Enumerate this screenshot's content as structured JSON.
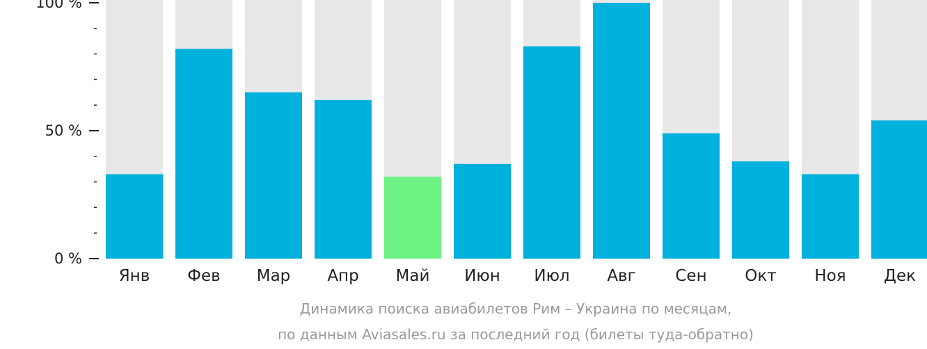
{
  "chart_data": {
    "type": "bar",
    "categories": [
      "Янв",
      "Фев",
      "Мар",
      "Апр",
      "Май",
      "Июн",
      "Июл",
      "Авг",
      "Сен",
      "Окт",
      "Ноя",
      "Дек"
    ],
    "values": [
      33,
      82,
      65,
      62,
      32,
      37,
      83,
      100,
      49,
      38,
      33,
      54
    ],
    "highlight_index": 4,
    "ylim": [
      0,
      100
    ],
    "yticks": [
      {
        "value": 0,
        "label": "0 %"
      },
      {
        "value": 50,
        "label": "50 %"
      },
      {
        "value": 100,
        "label": "100 %"
      }
    ],
    "minor_tick_step": 10,
    "grid": false,
    "legend": "none",
    "caption_lines": [
      "Динамика поиска авиабилетов Рим – Украина по месяцам,",
      "по данным Aviasales.ru за последний год (билеты туда-обратно)"
    ],
    "colors": {
      "bar": "#00b0dd",
      "highlight": "#6bf283",
      "background_bar": "#e8e8e8",
      "axis": "#222222",
      "caption": "#9a9a9a"
    }
  }
}
